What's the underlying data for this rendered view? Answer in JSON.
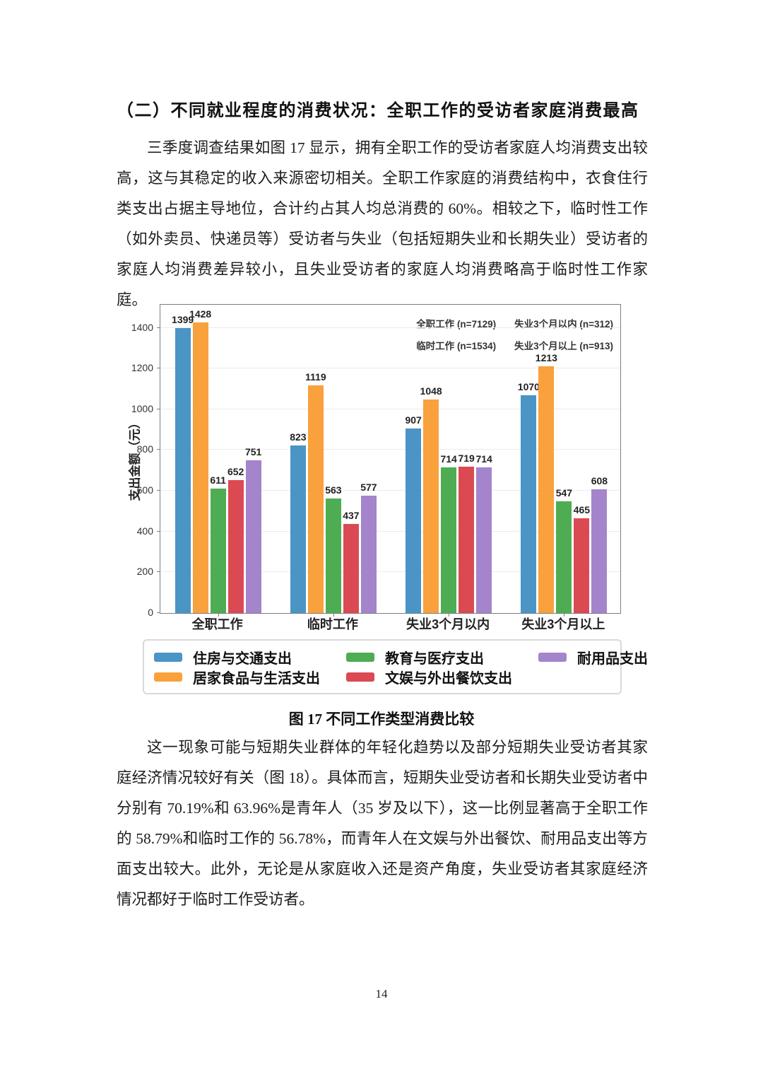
{
  "document": {
    "heading": "（二）不同就业程度的消费状况：全职工作的受访者家庭消费最高",
    "paragraph_1": "三季度调查结果如图 17 显示，拥有全职工作的受访者家庭人均消费支出较高，这与其稳定的收入来源密切相关。全职工作家庭的消费结构中，衣食住行类支出占据主导地位，合计约占其人均总消费的 60%。相较之下，临时性工作（如外卖员、快递员等）受访者与失业（包括短期失业和长期失业）受访者的家庭人均消费差异较小，且失业受访者的家庭人均消费略高于临时性工作家庭。",
    "figure_caption": "图 17 不同工作类型消费比较",
    "paragraph_2": "这一现象可能与短期失业群体的年轻化趋势以及部分短期失业受访者其家庭经济情况较好有关（图 18）。具体而言，短期失业受访者和长期失业受访者中分别有 70.19%和 63.96%是青年人（35 岁及以下），这一比例显著高于全职工作的 58.79%和临时工作的 56.78%，而青年人在文娱与外出餐饮、耐用品支出等方面支出较大。此外，无论是从家庭收入还是资产角度，失业受访者其家庭经济情况都好于临时工作受访者。",
    "page_number": "14"
  },
  "chart_data": {
    "type": "bar",
    "title": "",
    "ylabel": "支出金额（元）",
    "xlabel": "",
    "categories": [
      "全职工作",
      "临时工作",
      "失业3个月以内",
      "失业3个月以上"
    ],
    "series": [
      {
        "name": "住房与交通支出",
        "color": "#4B94C6",
        "values": [
          1399,
          823,
          907,
          1070
        ]
      },
      {
        "name": "居家食品与生活支出",
        "color": "#F9A13D",
        "values": [
          1428,
          1119,
          1048,
          1213
        ]
      },
      {
        "name": "教育与医疗支出",
        "color": "#4EAD52",
        "values": [
          611,
          563,
          714,
          547
        ]
      },
      {
        "name": "文娱与外出餐饮支出",
        "color": "#DB4A52",
        "values": [
          652,
          437,
          719,
          465
        ]
      },
      {
        "name": "耐用品支出",
        "color": "#A484CB",
        "values": [
          751,
          577,
          714,
          608
        ]
      }
    ],
    "yticks": [
      0,
      200,
      400,
      600,
      800,
      1000,
      1200,
      1400
    ],
    "ylim": [
      0,
      1520
    ],
    "grid": true,
    "bar_value_labels": true,
    "legend_position": "bottom",
    "annotations": [
      "全职工作 (n=7129)",
      "失业3个月以内 (n=312)",
      "临时工作 (n=1534)",
      "失业3个月以上 (n=913)"
    ]
  }
}
